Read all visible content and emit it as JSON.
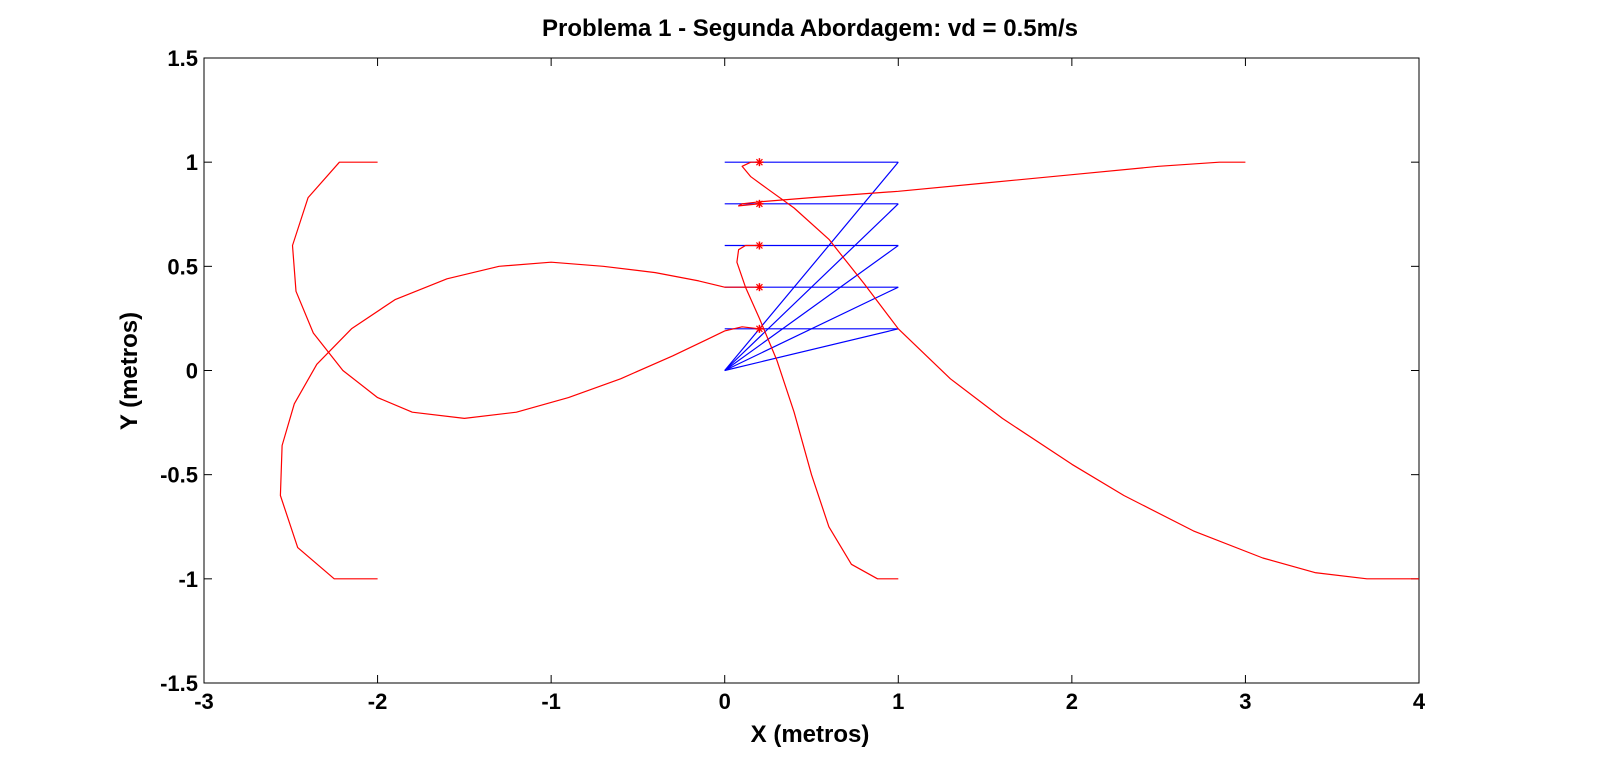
{
  "chart_data": {
    "type": "line",
    "title": "Problema 1 - Segunda Abordagem: vd = 0.5m/s",
    "xlabel": "X (metros)",
    "ylabel": "Y (metros)",
    "xlim": [
      -3,
      4
    ],
    "ylim": [
      -1.5,
      1.5
    ],
    "xticks": [
      -3,
      -2,
      -1,
      0,
      1,
      2,
      3,
      4
    ],
    "yticks": [
      -1.5,
      -1,
      -0.5,
      0,
      0.5,
      1,
      1.5
    ],
    "xtick_labels": [
      "-3",
      "-2",
      "-1",
      "0",
      "1",
      "2",
      "3",
      "4"
    ],
    "ytick_labels": [
      "-1.5",
      "-1",
      "-0.5",
      "0",
      "0.5",
      "1",
      "1.5"
    ],
    "grid": false,
    "colors": {
      "trajectory": "#ff0000",
      "formation": "#0000ff",
      "marker": "#ff0000"
    },
    "trajectories": [
      {
        "points": [
          [
            -2,
            1
          ],
          [
            -2.22,
            1
          ],
          [
            -2.4,
            0.83
          ],
          [
            -2.49,
            0.6
          ],
          [
            -2.47,
            0.38
          ],
          [
            -2.37,
            0.18
          ],
          [
            -2.2,
            0.0
          ],
          [
            -2.0,
            -0.13
          ],
          [
            -1.8,
            -0.2
          ],
          [
            -1.5,
            -0.23
          ],
          [
            -1.2,
            -0.2
          ],
          [
            -0.9,
            -0.13
          ],
          [
            -0.6,
            -0.04
          ],
          [
            -0.3,
            0.07
          ],
          [
            -0.1,
            0.15
          ],
          [
            0.0,
            0.19
          ],
          [
            0.1,
            0.21
          ],
          [
            0.2,
            0.2
          ]
        ]
      },
      {
        "points": [
          [
            -2,
            -1
          ],
          [
            -2.25,
            -1
          ],
          [
            -2.46,
            -0.85
          ],
          [
            -2.56,
            -0.6
          ],
          [
            -2.55,
            -0.36
          ],
          [
            -2.48,
            -0.16
          ],
          [
            -2.35,
            0.03
          ],
          [
            -2.15,
            0.2
          ],
          [
            -1.9,
            0.34
          ],
          [
            -1.6,
            0.44
          ],
          [
            -1.3,
            0.5
          ],
          [
            -1.0,
            0.52
          ],
          [
            -0.7,
            0.5
          ],
          [
            -0.4,
            0.47
          ],
          [
            -0.15,
            0.43
          ],
          [
            0.0,
            0.4
          ],
          [
            0.1,
            0.4
          ],
          [
            0.2,
            0.4
          ]
        ]
      },
      {
        "points": [
          [
            1,
            -1
          ],
          [
            0.88,
            -1
          ],
          [
            0.73,
            -0.93
          ],
          [
            0.6,
            -0.75
          ],
          [
            0.5,
            -0.5
          ],
          [
            0.4,
            -0.2
          ],
          [
            0.3,
            0.05
          ],
          [
            0.2,
            0.25
          ],
          [
            0.12,
            0.4
          ],
          [
            0.07,
            0.52
          ],
          [
            0.08,
            0.58
          ],
          [
            0.12,
            0.6
          ],
          [
            0.2,
            0.6
          ]
        ]
      },
      {
        "points": [
          [
            3,
            1
          ],
          [
            2.85,
            1
          ],
          [
            2.5,
            0.98
          ],
          [
            2.0,
            0.94
          ],
          [
            1.5,
            0.9
          ],
          [
            1.0,
            0.86
          ],
          [
            0.5,
            0.83
          ],
          [
            0.2,
            0.81
          ],
          [
            0.1,
            0.8
          ],
          [
            0.08,
            0.79
          ],
          [
            0.2,
            0.8
          ]
        ]
      },
      {
        "points": [
          [
            4,
            -1
          ],
          [
            3.9,
            -1
          ],
          [
            3.7,
            -1.0
          ],
          [
            3.4,
            -0.97
          ],
          [
            3.1,
            -0.9
          ],
          [
            2.7,
            -0.77
          ],
          [
            2.3,
            -0.6
          ],
          [
            2.0,
            -0.45
          ],
          [
            1.6,
            -0.23
          ],
          [
            1.3,
            -0.04
          ],
          [
            1.0,
            0.2
          ],
          [
            0.8,
            0.42
          ],
          [
            0.6,
            0.63
          ],
          [
            0.4,
            0.78
          ],
          [
            0.25,
            0.87
          ],
          [
            0.15,
            0.93
          ],
          [
            0.1,
            0.98
          ],
          [
            0.15,
            1.0
          ],
          [
            0.2,
            1.0
          ]
        ]
      }
    ],
    "formation": {
      "horizontals": [
        [
          [
            0,
            1
          ],
          [
            1,
            1
          ]
        ],
        [
          [
            0,
            0.8
          ],
          [
            1,
            0.8
          ]
        ],
        [
          [
            0,
            0.6
          ],
          [
            1,
            0.6
          ]
        ],
        [
          [
            0,
            0.4
          ],
          [
            1,
            0.4
          ]
        ],
        [
          [
            0,
            0.2
          ],
          [
            1,
            0.2
          ]
        ]
      ],
      "diagonals": [
        [
          [
            0,
            0
          ],
          [
            1,
            1
          ]
        ],
        [
          [
            0,
            0
          ],
          [
            1,
            0.8
          ]
        ],
        [
          [
            0,
            0
          ],
          [
            1,
            0.6
          ]
        ],
        [
          [
            0,
            0
          ],
          [
            1,
            0.4
          ]
        ],
        [
          [
            0,
            0
          ],
          [
            1,
            0.2
          ]
        ]
      ]
    },
    "markers": [
      [
        0.2,
        1
      ],
      [
        0.2,
        0.8
      ],
      [
        0.2,
        0.6
      ],
      [
        0.2,
        0.4
      ],
      [
        0.2,
        0.2
      ]
    ]
  }
}
